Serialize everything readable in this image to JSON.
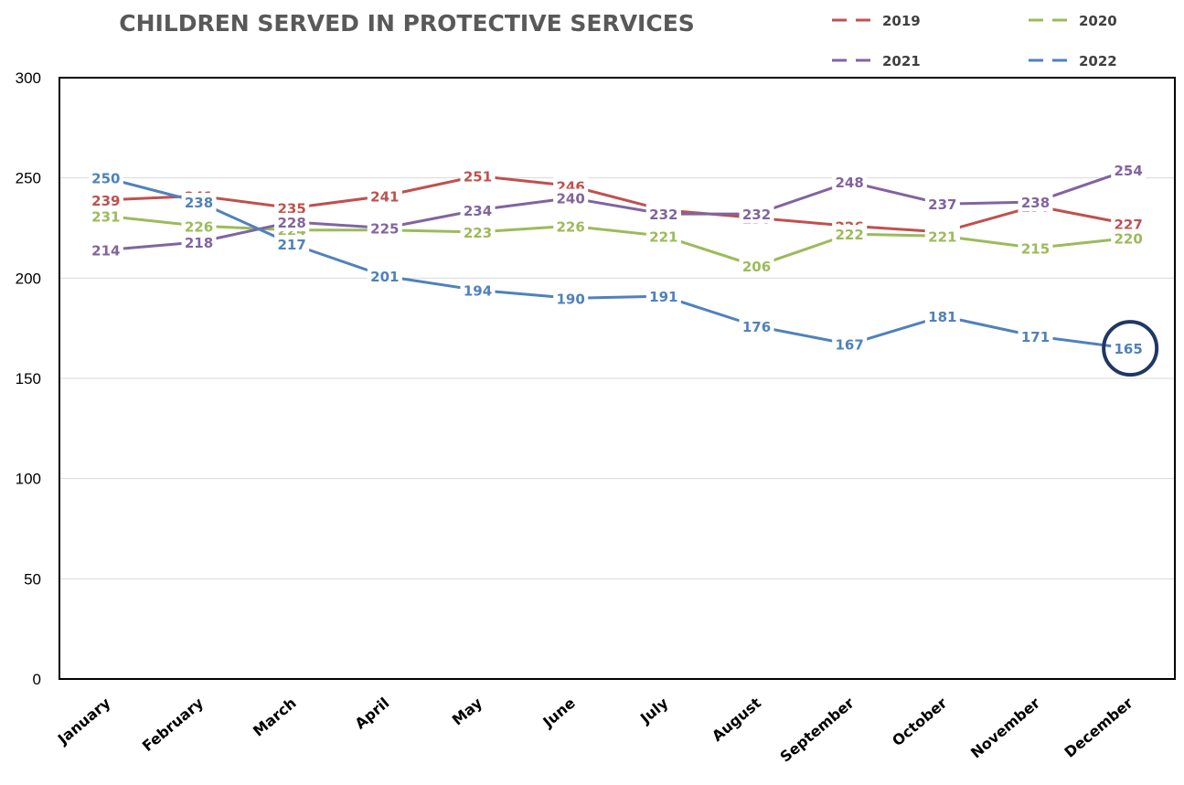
{
  "chart_data": {
    "type": "line",
    "title": "CHILDREN SERVED IN PROTECTIVE SERVICES",
    "xlabel": "",
    "ylabel": "",
    "ylim": [
      0,
      300
    ],
    "yticks": [
      "0",
      "50",
      "100",
      "150",
      "200",
      "250",
      "300"
    ],
    "grid": true,
    "legend_position": "top-right",
    "categories": [
      "January",
      "February",
      "March",
      "April",
      "May",
      "June",
      "July",
      "August",
      "September",
      "October",
      "November",
      "December"
    ],
    "series": [
      {
        "name": "2019",
        "color": "#C0504D",
        "values": [
          239,
          241,
          235,
          241,
          251,
          246,
          234,
          230,
          226,
          223,
          236,
          227
        ]
      },
      {
        "name": "2020",
        "color": "#9BBB59",
        "values": [
          231,
          226,
          224,
          224,
          223,
          226,
          221,
          206,
          222,
          221,
          215,
          220
        ]
      },
      {
        "name": "2021",
        "color": "#8064A2",
        "values": [
          214,
          218,
          228,
          225,
          234,
          240,
          232,
          232,
          248,
          237,
          238,
          254
        ]
      },
      {
        "name": "2022",
        "color": "#4F81BD",
        "values": [
          250,
          238,
          217,
          201,
          194,
          190,
          191,
          176,
          167,
          181,
          171,
          165
        ]
      }
    ],
    "highlight": {
      "series": "2022",
      "category": "December",
      "color": "#1F3864"
    }
  }
}
